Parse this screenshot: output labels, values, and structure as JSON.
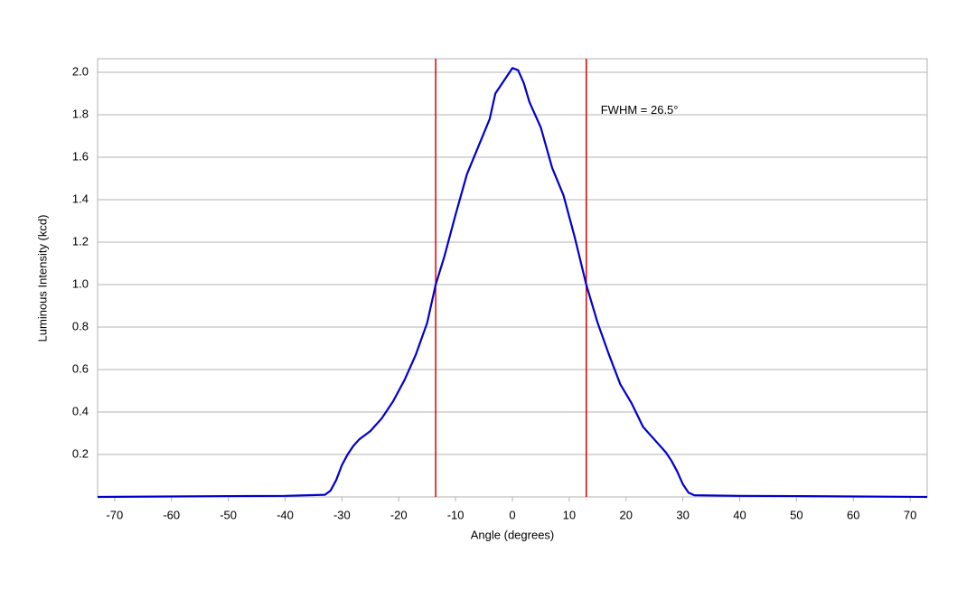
{
  "chart_data": {
    "type": "line",
    "x_label": "Angle (degrees)",
    "y_label": "Luminous Intensity (kcd)",
    "annotation": "FWHM = 26.5°",
    "x": [
      -73,
      -60,
      -50,
      -40,
      -33,
      -32,
      -31,
      -30,
      -29,
      -28,
      -27,
      -25,
      -23,
      -21,
      -19,
      -17,
      -15,
      -13.5,
      -12,
      -10,
      -8,
      -6,
      -4,
      -3,
      -1,
      0,
      1,
      2,
      3,
      5,
      7,
      9,
      11,
      13,
      15,
      17,
      19,
      21,
      23,
      25,
      27,
      28,
      29,
      30,
      31,
      32,
      40,
      50,
      60,
      73
    ],
    "series": [
      {
        "name": "Luminous Intensity",
        "color": "#0000cc",
        "values": [
          0,
          0.002,
          0.004,
          0.005,
          0.01,
          0.03,
          0.08,
          0.15,
          0.2,
          0.24,
          0.27,
          0.31,
          0.37,
          0.45,
          0.55,
          0.67,
          0.82,
          1.0,
          1.13,
          1.33,
          1.52,
          1.65,
          1.78,
          1.9,
          1.98,
          2.02,
          2.01,
          1.95,
          1.86,
          1.74,
          1.55,
          1.42,
          1.22,
          1.0,
          0.82,
          0.67,
          0.53,
          0.44,
          0.33,
          0.27,
          0.21,
          0.17,
          0.12,
          0.06,
          0.02,
          0.008,
          0.005,
          0.004,
          0.002,
          0
        ]
      }
    ],
    "vlines": [
      -13.5,
      13.0
    ],
    "vline_color": "#dd0000",
    "xlim": [
      -73,
      73
    ],
    "ylim": [
      0,
      2.064
    ],
    "xticks": [
      -70,
      -60,
      -50,
      -40,
      -30,
      -20,
      -10,
      0,
      10,
      20,
      30,
      40,
      50,
      60,
      70
    ],
    "yticks": [
      0.2,
      0.4,
      0.6,
      0.8,
      {
        "value": 1,
        "label": "1.0"
      },
      1.2,
      1.4,
      1.6,
      1.8,
      {
        "value": 2,
        "label": "2.0"
      }
    ],
    "grid": true
  }
}
